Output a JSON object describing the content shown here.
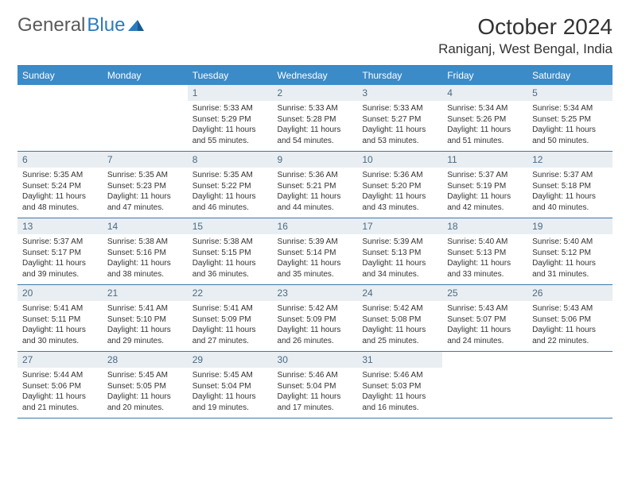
{
  "header": {
    "logo_part1": "General",
    "logo_part2": "Blue",
    "month_title": "October 2024",
    "location": "Raniganj, West Bengal, India"
  },
  "colors": {
    "header_bg": "#3b8bc8",
    "header_text": "#ffffff",
    "daynum_bg": "#e9eef2",
    "daynum_text": "#4a6a85",
    "rule": "#3b7aa8",
    "logo_gray": "#5a5a5a",
    "logo_blue": "#2b7bbf"
  },
  "weekdays": [
    "Sunday",
    "Monday",
    "Tuesday",
    "Wednesday",
    "Thursday",
    "Friday",
    "Saturday"
  ],
  "cells": [
    {
      "day": "",
      "sunrise": "",
      "sunset": "",
      "daylight": ""
    },
    {
      "day": "",
      "sunrise": "",
      "sunset": "",
      "daylight": ""
    },
    {
      "day": "1",
      "sunrise": "Sunrise: 5:33 AM",
      "sunset": "Sunset: 5:29 PM",
      "daylight": "Daylight: 11 hours and 55 minutes."
    },
    {
      "day": "2",
      "sunrise": "Sunrise: 5:33 AM",
      "sunset": "Sunset: 5:28 PM",
      "daylight": "Daylight: 11 hours and 54 minutes."
    },
    {
      "day": "3",
      "sunrise": "Sunrise: 5:33 AM",
      "sunset": "Sunset: 5:27 PM",
      "daylight": "Daylight: 11 hours and 53 minutes."
    },
    {
      "day": "4",
      "sunrise": "Sunrise: 5:34 AM",
      "sunset": "Sunset: 5:26 PM",
      "daylight": "Daylight: 11 hours and 51 minutes."
    },
    {
      "day": "5",
      "sunrise": "Sunrise: 5:34 AM",
      "sunset": "Sunset: 5:25 PM",
      "daylight": "Daylight: 11 hours and 50 minutes."
    },
    {
      "day": "6",
      "sunrise": "Sunrise: 5:35 AM",
      "sunset": "Sunset: 5:24 PM",
      "daylight": "Daylight: 11 hours and 48 minutes."
    },
    {
      "day": "7",
      "sunrise": "Sunrise: 5:35 AM",
      "sunset": "Sunset: 5:23 PM",
      "daylight": "Daylight: 11 hours and 47 minutes."
    },
    {
      "day": "8",
      "sunrise": "Sunrise: 5:35 AM",
      "sunset": "Sunset: 5:22 PM",
      "daylight": "Daylight: 11 hours and 46 minutes."
    },
    {
      "day": "9",
      "sunrise": "Sunrise: 5:36 AM",
      "sunset": "Sunset: 5:21 PM",
      "daylight": "Daylight: 11 hours and 44 minutes."
    },
    {
      "day": "10",
      "sunrise": "Sunrise: 5:36 AM",
      "sunset": "Sunset: 5:20 PM",
      "daylight": "Daylight: 11 hours and 43 minutes."
    },
    {
      "day": "11",
      "sunrise": "Sunrise: 5:37 AM",
      "sunset": "Sunset: 5:19 PM",
      "daylight": "Daylight: 11 hours and 42 minutes."
    },
    {
      "day": "12",
      "sunrise": "Sunrise: 5:37 AM",
      "sunset": "Sunset: 5:18 PM",
      "daylight": "Daylight: 11 hours and 40 minutes."
    },
    {
      "day": "13",
      "sunrise": "Sunrise: 5:37 AM",
      "sunset": "Sunset: 5:17 PM",
      "daylight": "Daylight: 11 hours and 39 minutes."
    },
    {
      "day": "14",
      "sunrise": "Sunrise: 5:38 AM",
      "sunset": "Sunset: 5:16 PM",
      "daylight": "Daylight: 11 hours and 38 minutes."
    },
    {
      "day": "15",
      "sunrise": "Sunrise: 5:38 AM",
      "sunset": "Sunset: 5:15 PM",
      "daylight": "Daylight: 11 hours and 36 minutes."
    },
    {
      "day": "16",
      "sunrise": "Sunrise: 5:39 AM",
      "sunset": "Sunset: 5:14 PM",
      "daylight": "Daylight: 11 hours and 35 minutes."
    },
    {
      "day": "17",
      "sunrise": "Sunrise: 5:39 AM",
      "sunset": "Sunset: 5:13 PM",
      "daylight": "Daylight: 11 hours and 34 minutes."
    },
    {
      "day": "18",
      "sunrise": "Sunrise: 5:40 AM",
      "sunset": "Sunset: 5:13 PM",
      "daylight": "Daylight: 11 hours and 33 minutes."
    },
    {
      "day": "19",
      "sunrise": "Sunrise: 5:40 AM",
      "sunset": "Sunset: 5:12 PM",
      "daylight": "Daylight: 11 hours and 31 minutes."
    },
    {
      "day": "20",
      "sunrise": "Sunrise: 5:41 AM",
      "sunset": "Sunset: 5:11 PM",
      "daylight": "Daylight: 11 hours and 30 minutes."
    },
    {
      "day": "21",
      "sunrise": "Sunrise: 5:41 AM",
      "sunset": "Sunset: 5:10 PM",
      "daylight": "Daylight: 11 hours and 29 minutes."
    },
    {
      "day": "22",
      "sunrise": "Sunrise: 5:41 AM",
      "sunset": "Sunset: 5:09 PM",
      "daylight": "Daylight: 11 hours and 27 minutes."
    },
    {
      "day": "23",
      "sunrise": "Sunrise: 5:42 AM",
      "sunset": "Sunset: 5:09 PM",
      "daylight": "Daylight: 11 hours and 26 minutes."
    },
    {
      "day": "24",
      "sunrise": "Sunrise: 5:42 AM",
      "sunset": "Sunset: 5:08 PM",
      "daylight": "Daylight: 11 hours and 25 minutes."
    },
    {
      "day": "25",
      "sunrise": "Sunrise: 5:43 AM",
      "sunset": "Sunset: 5:07 PM",
      "daylight": "Daylight: 11 hours and 24 minutes."
    },
    {
      "day": "26",
      "sunrise": "Sunrise: 5:43 AM",
      "sunset": "Sunset: 5:06 PM",
      "daylight": "Daylight: 11 hours and 22 minutes."
    },
    {
      "day": "27",
      "sunrise": "Sunrise: 5:44 AM",
      "sunset": "Sunset: 5:06 PM",
      "daylight": "Daylight: 11 hours and 21 minutes."
    },
    {
      "day": "28",
      "sunrise": "Sunrise: 5:45 AM",
      "sunset": "Sunset: 5:05 PM",
      "daylight": "Daylight: 11 hours and 20 minutes."
    },
    {
      "day": "29",
      "sunrise": "Sunrise: 5:45 AM",
      "sunset": "Sunset: 5:04 PM",
      "daylight": "Daylight: 11 hours and 19 minutes."
    },
    {
      "day": "30",
      "sunrise": "Sunrise: 5:46 AM",
      "sunset": "Sunset: 5:04 PM",
      "daylight": "Daylight: 11 hours and 17 minutes."
    },
    {
      "day": "31",
      "sunrise": "Sunrise: 5:46 AM",
      "sunset": "Sunset: 5:03 PM",
      "daylight": "Daylight: 11 hours and 16 minutes."
    },
    {
      "day": "",
      "sunrise": "",
      "sunset": "",
      "daylight": ""
    },
    {
      "day": "",
      "sunrise": "",
      "sunset": "",
      "daylight": ""
    }
  ]
}
